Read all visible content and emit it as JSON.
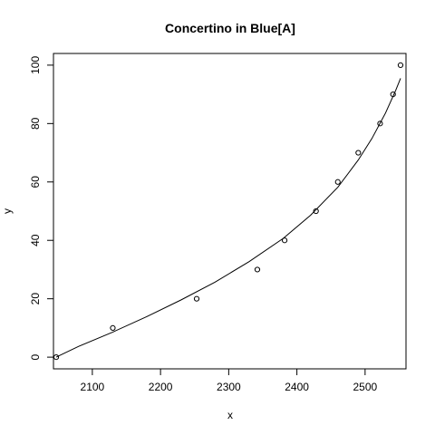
{
  "chart_data": {
    "type": "scatter",
    "title": "Concertino in Blue[A]",
    "xlabel": "x",
    "ylabel": "y",
    "xlim": [
      2043,
      2560
    ],
    "ylim": [
      -4,
      104
    ],
    "xticks": [
      2100,
      2200,
      2300,
      2400,
      2500
    ],
    "yticks": [
      0,
      20,
      40,
      60,
      80,
      100
    ],
    "grid": false,
    "legend": "none",
    "series": [
      {
        "type": "points",
        "marker": "open-circle",
        "x": [
          2047,
          2130,
          2253,
          2342,
          2382,
          2428,
          2460,
          2490,
          2522,
          2541,
          2552
        ],
        "y": [
          0,
          10,
          20,
          30,
          40,
          50,
          60,
          70,
          80,
          90,
          100
        ]
      },
      {
        "type": "line",
        "x": [
          2047,
          2080,
          2130,
          2180,
          2230,
          2280,
          2330,
          2380,
          2420,
          2460,
          2490,
          2510,
          2530,
          2545,
          2552
        ],
        "y": [
          0,
          3.7,
          8.6,
          13.9,
          19.6,
          25.7,
          32.7,
          40.7,
          48.6,
          58.2,
          67.5,
          74.9,
          83.6,
          91.4,
          95.5
        ]
      }
    ]
  }
}
